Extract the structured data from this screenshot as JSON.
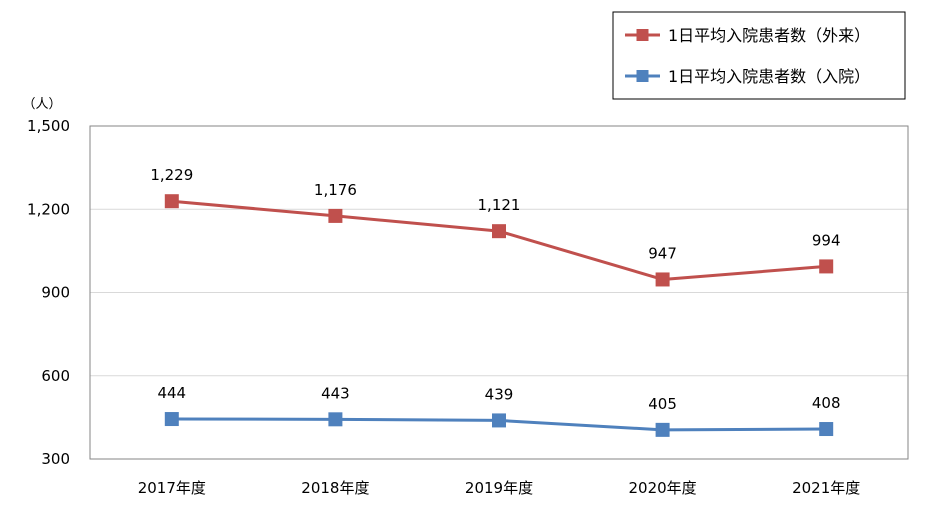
{
  "chart_data": {
    "type": "line",
    "categories": [
      "2017年度",
      "2018年度",
      "2019年度",
      "2020年度",
      "2021年度"
    ],
    "series": [
      {
        "name": "1日平均入院患者数（外来）",
        "color": "#c0504d",
        "values": [
          1229,
          1176,
          1121,
          947,
          994
        ],
        "labels": [
          "1,229",
          "1,176",
          "1,121",
          "947",
          "994"
        ]
      },
      {
        "name": "1日平均入院患者数（入院）",
        "color": "#4f81bd",
        "values": [
          444,
          443,
          439,
          405,
          408
        ],
        "labels": [
          "444",
          "443",
          "439",
          "405",
          "408"
        ]
      }
    ],
    "unit_label": "（人）",
    "y_ticks": [
      300,
      600,
      900,
      1200,
      1500
    ],
    "y_tick_labels": [
      "300",
      "600",
      "900",
      "1,200",
      "1,500"
    ],
    "ylim": [
      300,
      1500
    ],
    "grid": true,
    "legend_position": "top-right"
  }
}
